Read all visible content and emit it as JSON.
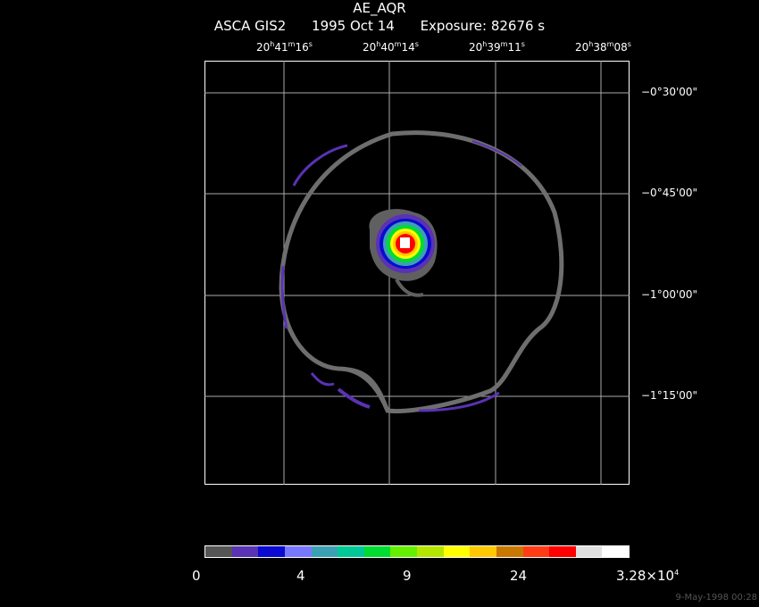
{
  "header": {
    "object": "AE_AQR",
    "instrument": "ASCA GIS2",
    "date": "1995 Oct 14",
    "exposure": "Exposure: 82676 s"
  },
  "ra_ticks": [
    {
      "h": "20",
      "m": "41",
      "s": "16"
    },
    {
      "h": "20",
      "m": "40",
      "s": "14"
    },
    {
      "h": "20",
      "m": "39",
      "s": "11"
    },
    {
      "h": "20",
      "m": "38",
      "s": "08"
    }
  ],
  "dec_ticks": [
    "−0°30'00\"",
    "−0°45'00\"",
    "−1°00'00\"",
    "−1°15'00\""
  ],
  "colorbar": {
    "colors": [
      "#555555",
      "#5a32b4",
      "#0a0ad2",
      "#7878ff",
      "#3ca0b4",
      "#00c896",
      "#00dc32",
      "#64f000",
      "#b4e600",
      "#ffff00",
      "#ffc800",
      "#c87800",
      "#ff3c14",
      "#ff0000",
      "#e0e0e0",
      "#ffffff"
    ],
    "labels": [
      "0",
      "4",
      "9",
      "24"
    ],
    "max_label": "3.28×10",
    "max_exp": "4"
  },
  "footer": {
    "timestamp": "9-May-1998 00:28"
  }
}
